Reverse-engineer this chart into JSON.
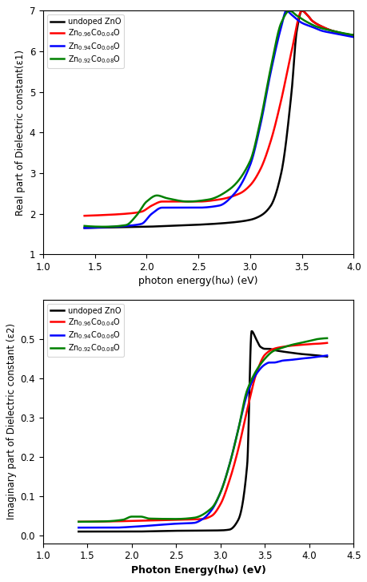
{
  "top_plot": {
    "xlabel": "photon energy(hω) (eV)",
    "ylabel": "Real part of Dielectric constant(ε1)",
    "xlim": [
      1.0,
      4.0
    ],
    "ylim": [
      1.0,
      7.0
    ],
    "xticks": [
      1.0,
      1.5,
      2.0,
      2.5,
      3.0,
      3.5,
      4.0
    ],
    "yticks": [
      1,
      2,
      3,
      4,
      5,
      6,
      7
    ],
    "legend_labels": [
      "undoped ZnO",
      "Zn$_{0.96}$Co$_{0.04}$O",
      "Zn$_{0.94}$Co$_{0.06}$O",
      "Zn$_{0.92}$Co$_{0.08}$O"
    ],
    "colors": [
      "black",
      "red",
      "blue",
      "green"
    ]
  },
  "bottom_plot": {
    "xlabel": "Photon Energy(hω) (eV)",
    "ylabel": "Imaginary part of Dielectric constant (ε2)",
    "xlim": [
      1.0,
      4.5
    ],
    "ylim": [
      -0.02,
      0.6
    ],
    "xticks": [
      1.0,
      1.5,
      2.0,
      2.5,
      3.0,
      3.5,
      4.0,
      4.5
    ],
    "yticks": [
      0.0,
      0.1,
      0.2,
      0.3,
      0.4,
      0.5
    ],
    "legend_labels": [
      "undoped ZnO",
      "Zn$_{0.96}$Co$_{0.04}$O",
      "Zn$_{0.94}$Co$_{0.06}$O",
      "Zn$_{0.92}$Co$_{0.08}$O"
    ],
    "colors": [
      "black",
      "red",
      "blue",
      "green"
    ]
  }
}
